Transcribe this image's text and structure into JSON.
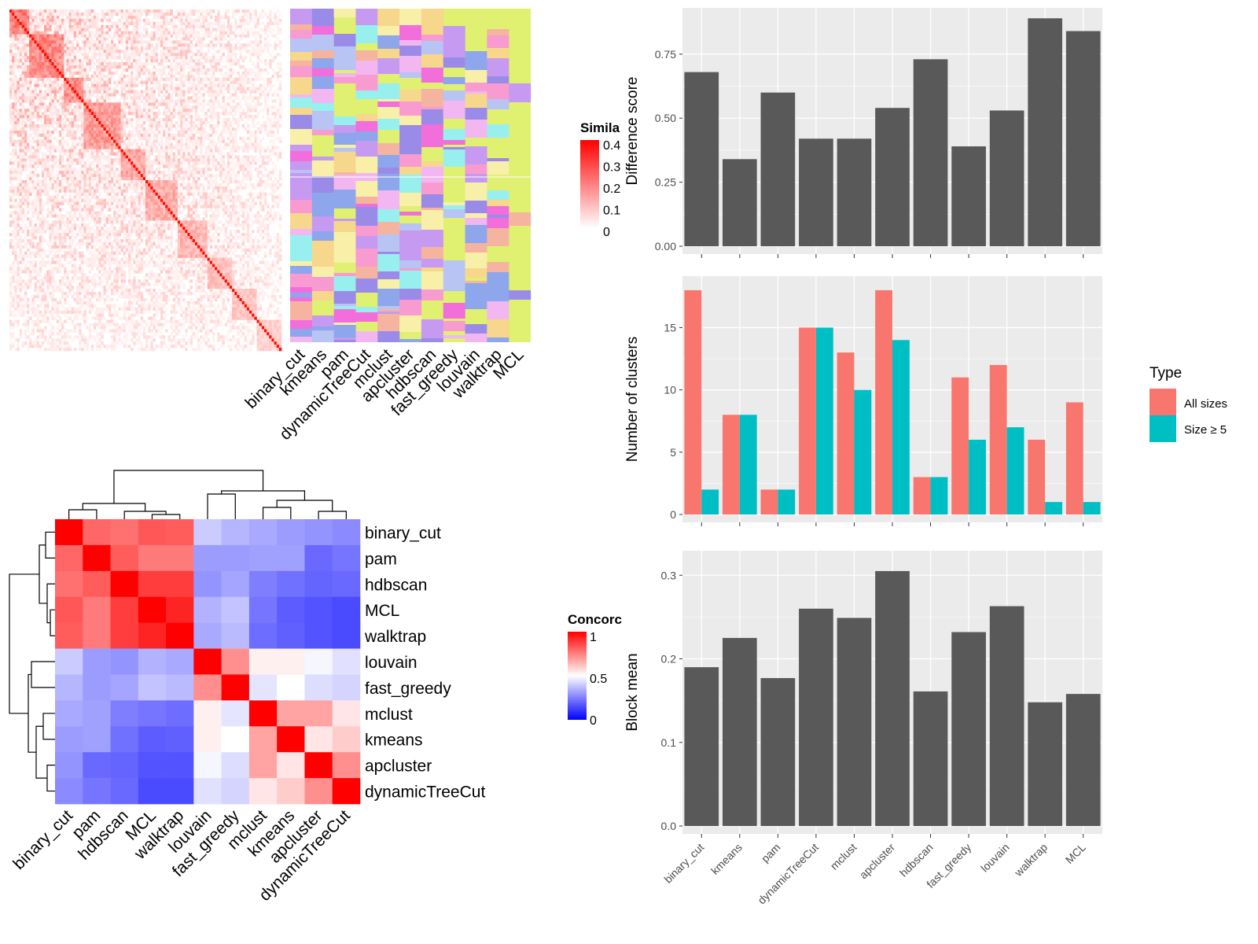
{
  "methods": [
    "binary_cut",
    "kmeans",
    "pam",
    "dynamicTreeCut",
    "mclust",
    "apcluster",
    "hdbscan",
    "fast_greedy",
    "louvain",
    "walktrap",
    "MCL"
  ],
  "similarity_legend": {
    "title": "Simila",
    "ticks": [
      "0.4",
      "0.3",
      "0.2",
      "0.1",
      "0"
    ]
  },
  "concordance_legend": {
    "title": "Concorc",
    "ticks": [
      "1",
      "0.5",
      "0"
    ]
  },
  "concordance_order": [
    "binary_cut",
    "pam",
    "hdbscan",
    "MCL",
    "walktrap",
    "louvain",
    "fast_greedy",
    "mclust",
    "kmeans",
    "apcluster",
    "dynamicTreeCut"
  ],
  "concordance_matrix": [
    [
      1.0,
      0.8,
      0.78,
      0.83,
      0.82,
      0.38,
      0.33,
      0.3,
      0.27,
      0.25,
      0.23
    ],
    [
      0.8,
      1.0,
      0.82,
      0.76,
      0.76,
      0.27,
      0.27,
      0.28,
      0.28,
      0.15,
      0.18
    ],
    [
      0.78,
      0.82,
      1.0,
      0.88,
      0.88,
      0.25,
      0.29,
      0.2,
      0.17,
      0.14,
      0.15
    ],
    [
      0.83,
      0.76,
      0.88,
      1.0,
      0.93,
      0.32,
      0.36,
      0.18,
      0.12,
      0.1,
      0.08
    ],
    [
      0.82,
      0.76,
      0.88,
      0.93,
      1.0,
      0.3,
      0.34,
      0.16,
      0.13,
      0.1,
      0.08
    ],
    [
      0.38,
      0.27,
      0.25,
      0.32,
      0.3,
      1.0,
      0.72,
      0.53,
      0.53,
      0.48,
      0.43
    ],
    [
      0.33,
      0.27,
      0.29,
      0.36,
      0.34,
      0.72,
      1.0,
      0.44,
      0.5,
      0.42,
      0.4
    ],
    [
      0.3,
      0.28,
      0.2,
      0.18,
      0.16,
      0.53,
      0.44,
      1.0,
      0.68,
      0.68,
      0.55
    ],
    [
      0.27,
      0.28,
      0.17,
      0.12,
      0.13,
      0.53,
      0.5,
      0.68,
      1.0,
      0.55,
      0.6
    ],
    [
      0.25,
      0.15,
      0.14,
      0.1,
      0.1,
      0.48,
      0.42,
      0.68,
      0.55,
      1.0,
      0.72
    ],
    [
      0.23,
      0.18,
      0.15,
      0.08,
      0.08,
      0.43,
      0.4,
      0.55,
      0.6,
      0.72,
      1.0
    ]
  ],
  "chart_data": [
    {
      "type": "heatmap",
      "description_key": "similarity",
      "legend_title": "Simila",
      "color_range": [
        0,
        0.4
      ]
    },
    {
      "type": "heatmap",
      "description_key": "partition",
      "columns": [
        "binary_cut",
        "kmeans",
        "pam",
        "dynamicTreeCut",
        "mclust",
        "apcluster",
        "hdbscan",
        "fast_greedy",
        "louvain",
        "walktrap",
        "MCL"
      ]
    },
    {
      "type": "heatmap",
      "description_key": "concordance",
      "legend_title": "Concorc",
      "color_range": [
        0,
        1
      ]
    },
    {
      "type": "bar",
      "categories": [
        "binary_cut",
        "kmeans",
        "pam",
        "dynamicTreeCut",
        "mclust",
        "apcluster",
        "hdbscan",
        "fast_greedy",
        "louvain",
        "walktrap",
        "MCL"
      ],
      "values": [
        0.68,
        0.34,
        0.6,
        0.42,
        0.42,
        0.54,
        0.73,
        0.39,
        0.53,
        0.89,
        0.84
      ],
      "ylabel": "Difference score",
      "ylim": [
        0,
        0.9
      ],
      "yticks": [
        "0.00",
        "0.25",
        "0.50",
        "0.75"
      ]
    },
    {
      "type": "bar",
      "categories": [
        "binary_cut",
        "kmeans",
        "pam",
        "dynamicTreeCut",
        "mclust",
        "apcluster",
        "hdbscan",
        "fast_greedy",
        "louvain",
        "walktrap",
        "MCL"
      ],
      "series": [
        {
          "name": "All sizes",
          "values": [
            18,
            8,
            2,
            15,
            13,
            18,
            3,
            11,
            12,
            6,
            9
          ]
        },
        {
          "name": "Size ≥ 5",
          "values": [
            2,
            8,
            2,
            15,
            10,
            14,
            3,
            6,
            7,
            1,
            1
          ]
        }
      ],
      "ylabel": "Number of clusters",
      "ylim": [
        0,
        18.5
      ],
      "yticks": [
        "0",
        "5",
        "10",
        "15"
      ],
      "legend_title": "Type"
    },
    {
      "type": "bar",
      "categories": [
        "binary_cut",
        "kmeans",
        "pam",
        "dynamicTreeCut",
        "mclust",
        "apcluster",
        "hdbscan",
        "fast_greedy",
        "louvain",
        "walktrap",
        "MCL"
      ],
      "values": [
        0.19,
        0.225,
        0.177,
        0.26,
        0.249,
        0.305,
        0.161,
        0.232,
        0.263,
        0.148,
        0.158
      ],
      "ylabel": "Block mean",
      "ylim": [
        0,
        0.32
      ],
      "yticks": [
        "0.0",
        "0.1",
        "0.2",
        "0.3"
      ]
    }
  ],
  "colors": {
    "bar_gray": "#595959",
    "all_sizes": "#F8766D",
    "size5": "#00BFC4",
    "panel_bg": "#EBEBEB",
    "partition_bg": "#E0F070"
  }
}
